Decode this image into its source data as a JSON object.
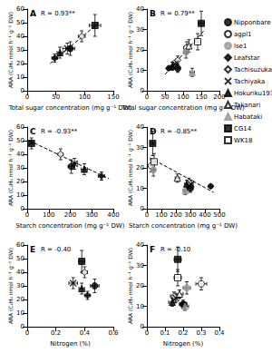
{
  "chart_data": [
    {
      "type": "scatter",
      "title": "A",
      "annotation": "R = 0.93**",
      "x_label": "Total sugar concentration (mg g⁻¹ DW)",
      "y_label": "ARA (C₂H₄ nmol h⁻¹ g⁻¹ DW)",
      "xlim": [
        0,
        150
      ],
      "xticks": [
        0,
        50,
        100,
        150
      ],
      "ylim": [
        0,
        60
      ],
      "yticks": [
        0,
        10,
        20,
        30,
        40,
        50,
        60
      ],
      "grid": false,
      "series": [
        {
          "type": "line",
          "line_style": "dashed",
          "color": "#000000",
          "x": [
            40,
            125
          ],
          "values": [
            20,
            50
          ]
        },
        {
          "name": "Nipponbare",
          "marker": "circle",
          "color": "#000000",
          "x": [
            75
          ],
          "values": [
            31
          ],
          "x_err": [
            8
          ],
          "y_err": [
            5
          ]
        },
        {
          "name": "Leafstar",
          "marker": "diamond",
          "color": "#000000",
          "x": [
            48
          ],
          "values": [
            24
          ],
          "x_err": [
            5
          ],
          "y_err": [
            3
          ]
        },
        {
          "name": "Tachisuzuka",
          "marker": "open_diamond",
          "color": "#000000",
          "x": [
            95
          ],
          "values": [
            40
          ],
          "x_err": [
            6
          ],
          "y_err": [
            4
          ]
        },
        {
          "name": "Tachiyaka",
          "marker": "x",
          "color": "#000000",
          "x": [
            70
          ],
          "values": [
            31
          ],
          "x_err": [
            8
          ],
          "y_err": [
            4
          ]
        },
        {
          "name": "Hokuriku193",
          "marker": "triangle",
          "color": "#000000",
          "x": [
            57
          ],
          "values": [
            28
          ],
          "x_err": [
            5
          ],
          "y_err": [
            4
          ]
        },
        {
          "name": "CG14",
          "marker": "square",
          "color": "#000000",
          "x": [
            118
          ],
          "values": [
            48
          ],
          "x_err": [
            10
          ],
          "y_err": [
            8
          ]
        }
      ]
    },
    {
      "type": "scatter",
      "title": "B",
      "annotation": "R = 0.79**",
      "legend": "right",
      "x_label": "Total sugar concentration (mg g⁻¹ DW)",
      "y_label": "ARA (C₂H₄ nmol h⁻¹ g⁻¹ DW)",
      "xlim": [
        0,
        200
      ],
      "xticks": [
        0,
        50,
        100,
        150,
        200
      ],
      "ylim": [
        0,
        40
      ],
      "yticks": [
        0,
        10,
        20,
        30,
        40
      ],
      "grid": false,
      "series": [
        {
          "type": "line",
          "line_style": "dashed",
          "color": "#000000",
          "x": [
            50,
            160
          ],
          "values": [
            8,
            30
          ]
        },
        {
          "name": "Nipponbare",
          "marker": "circle",
          "color": "#000000",
          "x": [
            85
          ],
          "values": [
            11
          ],
          "x_err": [
            6
          ],
          "y_err": [
            2
          ]
        },
        {
          "name": "agpl1",
          "marker": "open_circle",
          "color": "#000000",
          "x": [
            110
          ],
          "values": [
            21
          ],
          "x_err": [
            8
          ],
          "y_err": [
            3
          ]
        },
        {
          "name": "lse1",
          "marker": "circle",
          "color": "#999999",
          "x": [
            108
          ],
          "values": [
            19
          ],
          "x_err": [
            6
          ],
          "y_err": [
            3
          ]
        },
        {
          "name": "Leafstar",
          "marker": "diamond",
          "color": "#000000",
          "x": [
            60
          ],
          "values": [
            11
          ],
          "x_err": [
            5
          ],
          "y_err": [
            1
          ]
        },
        {
          "name": "Tachisuzuka",
          "marker": "open_diamond",
          "color": "#000000",
          "x": [
            85
          ],
          "values": [
            15
          ],
          "x_err": [
            5
          ],
          "y_err": [
            2
          ]
        },
        {
          "name": "Tachiyaka",
          "marker": "x",
          "color": "#000000",
          "x": [
            78
          ],
          "values": [
            13
          ],
          "x_err": [
            6
          ],
          "y_err": [
            2
          ]
        },
        {
          "name": "Hokuriku193",
          "marker": "triangle",
          "color": "#000000",
          "x": [
            70
          ],
          "values": [
            12
          ],
          "x_err": [
            5
          ],
          "y_err": [
            2
          ]
        },
        {
          "name": "Takanari",
          "marker": "open_triangle",
          "color": "#000000",
          "x": [
            116
          ],
          "values": [
            22
          ],
          "x_err": [
            6
          ],
          "y_err": [
            3
          ]
        },
        {
          "name": "Habataki",
          "marker": "triangle",
          "color": "#999999",
          "x": [
            125
          ],
          "values": [
            9
          ],
          "x_err": [
            6
          ],
          "y_err": [
            2
          ]
        },
        {
          "name": "CG14",
          "marker": "square",
          "color": "#000000",
          "x": [
            150
          ],
          "values": [
            33
          ],
          "x_err": [
            8
          ],
          "y_err": [
            6
          ]
        },
        {
          "name": "WK18",
          "marker": "open_square",
          "color": "#000000",
          "x": [
            140
          ],
          "values": [
            24
          ],
          "x_err": [
            8
          ],
          "y_err": [
            4
          ]
        }
      ]
    },
    {
      "type": "scatter",
      "title": "C",
      "annotation": "R = -0.93**",
      "x_label": "Starch concentration (mg g⁻¹ DW)",
      "y_label": "ARA (C₂H₄ nmol h⁻¹ g⁻¹ DW)",
      "xlim": [
        0,
        400
      ],
      "xticks": [
        0,
        100,
        200,
        300,
        400
      ],
      "ylim": [
        0,
        60
      ],
      "yticks": [
        0,
        10,
        20,
        30,
        40,
        50,
        60
      ],
      "grid": false,
      "series": [
        {
          "type": "line",
          "line_style": "dashed",
          "color": "#000000",
          "x": [
            10,
            380
          ],
          "values": [
            50,
            22
          ]
        },
        {
          "name": "Nipponbare",
          "marker": "circle",
          "color": "#000000",
          "x": [
            205
          ],
          "values": [
            31
          ],
          "x_err": [
            15
          ],
          "y_err": [
            5
          ]
        },
        {
          "name": "Leafstar",
          "marker": "diamond",
          "color": "#000000",
          "x": [
            345
          ],
          "values": [
            24
          ],
          "x_err": [
            15
          ],
          "y_err": [
            3
          ]
        },
        {
          "name": "Tachisuzuka",
          "marker": "open_diamond",
          "color": "#000000",
          "x": [
            155
          ],
          "values": [
            40
          ],
          "x_err": [
            12
          ],
          "y_err": [
            4
          ]
        },
        {
          "name": "Tachiyaka",
          "marker": "x",
          "color": "#000000",
          "x": [
            220
          ],
          "values": [
            33
          ],
          "x_err": [
            15
          ],
          "y_err": [
            4
          ]
        },
        {
          "name": "Hokuriku193",
          "marker": "triangle",
          "color": "#000000",
          "x": [
            265
          ],
          "values": [
            29
          ],
          "x_err": [
            15
          ],
          "y_err": [
            4
          ]
        },
        {
          "name": "CG14",
          "marker": "square",
          "color": "#000000",
          "x": [
            20
          ],
          "values": [
            48
          ],
          "x_err": [
            8
          ],
          "y_err": [
            4
          ]
        }
      ]
    },
    {
      "type": "scatter",
      "title": "D",
      "annotation": "R = -0.85**",
      "x_label": "Starch concentration (mg g⁻¹ DW)",
      "y_label": "ARA (C₂H₄ nmol h⁻¹ g⁻¹ DW)",
      "xlim": [
        0,
        500
      ],
      "xticks": [
        0,
        100,
        200,
        300,
        400,
        500
      ],
      "ylim": [
        0,
        40
      ],
      "yticks": [
        0,
        10,
        20,
        30,
        40
      ],
      "grid": false,
      "series": [
        {
          "type": "line",
          "line_style": "dashed",
          "color": "#000000",
          "x": [
            20,
            460
          ],
          "values": [
            25,
            8
          ]
        },
        {
          "name": "Nipponbare",
          "marker": "circle",
          "color": "#000000",
          "x": [
            300
          ],
          "values": [
            10
          ],
          "x_err": [
            15
          ],
          "y_err": [
            2
          ]
        },
        {
          "name": "agpl1",
          "marker": "open_circle",
          "color": "#000000",
          "x": [
            30
          ],
          "values": [
            21
          ],
          "x_err": [
            10
          ],
          "y_err": [
            3
          ]
        },
        {
          "name": "lse1",
          "marker": "circle",
          "color": "#999999",
          "x": [
            45
          ],
          "values": [
            19
          ],
          "x_err": [
            10
          ],
          "y_err": [
            3
          ]
        },
        {
          "name": "Leafstar",
          "marker": "diamond",
          "color": "#000000",
          "x": [
            440
          ],
          "values": [
            11
          ],
          "x_err": [
            15
          ],
          "y_err": [
            1
          ]
        },
        {
          "name": "Tachisuzuka",
          "marker": "open_diamond",
          "color": "#000000",
          "x": [
            290
          ],
          "values": [
            13
          ],
          "x_err": [
            15
          ],
          "y_err": [
            2
          ]
        },
        {
          "name": "Tachiyaka",
          "marker": "x",
          "color": "#000000",
          "x": [
            305
          ],
          "values": [
            12
          ],
          "x_err": [
            15
          ],
          "y_err": [
            2
          ]
        },
        {
          "name": "Hokuriku193",
          "marker": "triangle",
          "color": "#000000",
          "x": [
            275
          ],
          "values": [
            12
          ],
          "x_err": [
            15
          ],
          "y_err": [
            2
          ]
        },
        {
          "name": "Takanari",
          "marker": "open_triangle",
          "color": "#000000",
          "x": [
            210
          ],
          "values": [
            15
          ],
          "x_err": [
            15
          ],
          "y_err": [
            2
          ]
        },
        {
          "name": "Habataki",
          "marker": "triangle",
          "color": "#999999",
          "x": [
            265
          ],
          "values": [
            9
          ],
          "x_err": [
            15
          ],
          "y_err": [
            2
          ]
        },
        {
          "name": "CG14",
          "marker": "square",
          "color": "#000000",
          "x": [
            40
          ],
          "values": [
            32
          ],
          "x_err": [
            10
          ],
          "y_err": [
            6
          ]
        },
        {
          "name": "WK18",
          "marker": "open_square",
          "color": "#000000",
          "x": [
            50
          ],
          "values": [
            23
          ],
          "x_err": [
            10
          ],
          "y_err": [
            4
          ]
        }
      ]
    },
    {
      "type": "scatter",
      "title": "E",
      "annotation": "R = -0.40",
      "x_label": "Nitrogen (%)",
      "y_label": "ARA (C₂H₄ nmol h⁻¹ g⁻¹ DW)",
      "xlim": [
        0,
        0.6
      ],
      "xticks": [
        0,
        0.2,
        0.4,
        0.6
      ],
      "ylim": [
        0,
        60
      ],
      "yticks": [
        0,
        10,
        20,
        30,
        40,
        50,
        60
      ],
      "grid": false,
      "series": [
        {
          "name": "Nipponbare",
          "marker": "circle",
          "color": "#000000",
          "x": [
            0.47
          ],
          "values": [
            30
          ],
          "x_err": [
            0.03
          ],
          "y_err": [
            5
          ]
        },
        {
          "name": "Leafstar",
          "marker": "diamond",
          "color": "#000000",
          "x": [
            0.42
          ],
          "values": [
            23
          ],
          "x_err": [
            0.02
          ],
          "y_err": [
            3
          ]
        },
        {
          "name": "Tachisuzuka",
          "marker": "open_diamond",
          "color": "#000000",
          "x": [
            0.4
          ],
          "values": [
            40
          ],
          "x_err": [
            0.02
          ],
          "y_err": [
            4
          ]
        },
        {
          "name": "Tachiyaka",
          "marker": "x",
          "color": "#000000",
          "x": [
            0.32
          ],
          "values": [
            32
          ],
          "x_err": [
            0.03
          ],
          "y_err": [
            4
          ]
        },
        {
          "name": "Hokuriku193",
          "marker": "triangle",
          "color": "#000000",
          "x": [
            0.38
          ],
          "values": [
            28
          ],
          "x_err": [
            0.02
          ],
          "y_err": [
            4
          ]
        },
        {
          "name": "CG14",
          "marker": "square",
          "color": "#000000",
          "x": [
            0.38
          ],
          "values": [
            48
          ],
          "x_err": [
            0.02
          ],
          "y_err": [
            8
          ]
        }
      ]
    },
    {
      "type": "scatter",
      "title": "F",
      "annotation": "R = -0.10",
      "x_label": "Nitrogen (%)",
      "y_label": "ARA (C₂H₄ nmol h⁻¹ g⁻¹ DW)",
      "xlim": [
        0,
        0.4
      ],
      "xticks": [
        0,
        0.1,
        0.2,
        0.3,
        0.4
      ],
      "ylim": [
        0,
        40
      ],
      "yticks": [
        0,
        10,
        20,
        30,
        40
      ],
      "grid": false,
      "series": [
        {
          "name": "Nipponbare",
          "marker": "circle",
          "color": "#000000",
          "x": [
            0.2
          ],
          "values": [
            11
          ],
          "x_err": [
            0.02
          ],
          "y_err": [
            2
          ]
        },
        {
          "name": "agpl1",
          "marker": "open_circle",
          "color": "#000000",
          "x": [
            0.3
          ],
          "values": [
            21
          ],
          "x_err": [
            0.03
          ],
          "y_err": [
            3
          ]
        },
        {
          "name": "lse1",
          "marker": "circle",
          "color": "#999999",
          "x": [
            0.22
          ],
          "values": [
            19
          ],
          "x_err": [
            0.02
          ],
          "y_err": [
            3
          ]
        },
        {
          "name": "Leafstar",
          "marker": "diamond",
          "color": "#000000",
          "x": [
            0.2
          ],
          "values": [
            11
          ],
          "x_err": [
            0.02
          ],
          "y_err": [
            1
          ]
        },
        {
          "name": "Tachisuzuka",
          "marker": "open_diamond",
          "color": "#000000",
          "x": [
            0.15
          ],
          "values": [
            15
          ],
          "x_err": [
            0.02
          ],
          "y_err": [
            2
          ]
        },
        {
          "name": "Tachiyaka",
          "marker": "x",
          "color": "#000000",
          "x": [
            0.16
          ],
          "values": [
            14
          ],
          "x_err": [
            0.02
          ],
          "y_err": [
            2
          ]
        },
        {
          "name": "Hokuriku193",
          "marker": "triangle",
          "color": "#000000",
          "x": [
            0.14
          ],
          "values": [
            12
          ],
          "x_err": [
            0.02
          ],
          "y_err": [
            2
          ]
        },
        {
          "name": "Takanari",
          "marker": "open_triangle",
          "color": "#000000",
          "x": [
            0.18
          ],
          "values": [
            16
          ],
          "x_err": [
            0.02
          ],
          "y_err": [
            2
          ]
        },
        {
          "name": "Habataki",
          "marker": "triangle",
          "color": "#999999",
          "x": [
            0.21
          ],
          "values": [
            10
          ],
          "x_err": [
            0.02
          ],
          "y_err": [
            2
          ]
        },
        {
          "name": "CG14",
          "marker": "square",
          "color": "#000000",
          "x": [
            0.17
          ],
          "values": [
            33
          ],
          "x_err": [
            0.02
          ],
          "y_err": [
            6
          ]
        },
        {
          "name": "WK18",
          "marker": "open_square",
          "color": "#000000",
          "x": [
            0.17
          ],
          "values": [
            24
          ],
          "x_err": [
            0.02
          ],
          "y_err": [
            4
          ]
        }
      ]
    }
  ]
}
